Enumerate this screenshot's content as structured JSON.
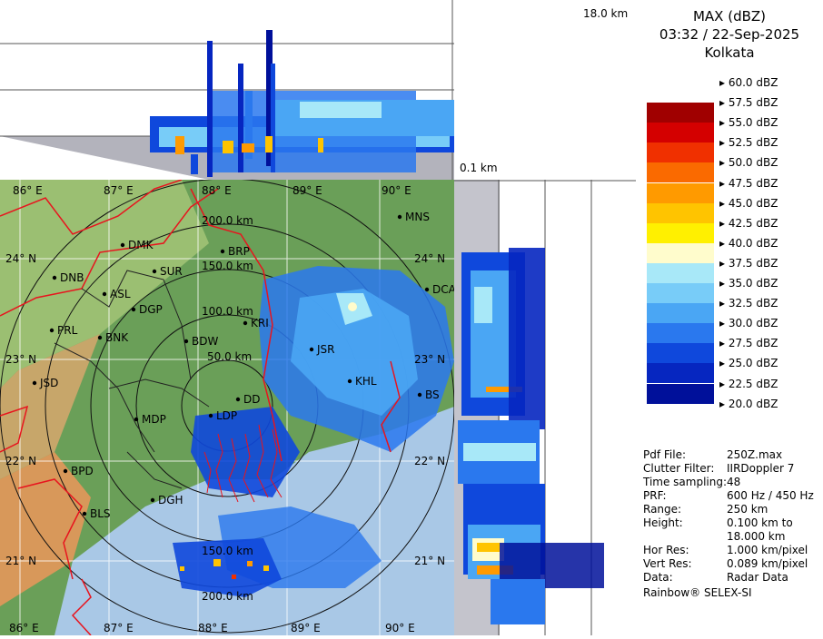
{
  "legend": {
    "title_lines": [
      "MAX (dBZ)",
      "03:32 / 22-Sep-2025",
      "Kolkata"
    ],
    "levels": [
      {
        "label": "60.0 dBZ",
        "color": ""
      },
      {
        "label": "57.5 dBZ",
        "color": "#ffffff"
      },
      {
        "label": "55.0 dBZ",
        "color": "#a00000"
      },
      {
        "label": "52.5 dBZ",
        "color": "#d40000"
      },
      {
        "label": "50.0 dBZ",
        "color": "#f03000"
      },
      {
        "label": "47.5 dBZ",
        "color": "#fa6a00"
      },
      {
        "label": "45.0 dBZ",
        "color": "#ff9a00"
      },
      {
        "label": "42.5 dBZ",
        "color": "#ffc400"
      },
      {
        "label": "40.0 dBZ",
        "color": "#fff000"
      },
      {
        "label": "37.5 dBZ",
        "color": "#fffccc"
      },
      {
        "label": "35.0 dBZ",
        "color": "#a8e8f8"
      },
      {
        "label": "32.5 dBZ",
        "color": "#78ccf8"
      },
      {
        "label": "30.0 dBZ",
        "color": "#4aa6f4"
      },
      {
        "label": "27.5 dBZ",
        "color": "#2a78ee"
      },
      {
        "label": "25.0 dBZ",
        "color": "#0f48dc"
      },
      {
        "label": "22.5 dBZ",
        "color": "#0626c0"
      },
      {
        "label": "20.0 dBZ",
        "color": "#00109a"
      }
    ]
  },
  "info": [
    {
      "key": "Pdf File:",
      "value": "250Z.max"
    },
    {
      "key": "Clutter Filter:",
      "value": "IIRDoppler 7"
    },
    {
      "key": "Time sampling:",
      "value": "48"
    },
    {
      "key": "PRF:",
      "value": "600 Hz / 450 Hz"
    },
    {
      "key": "Range:",
      "value": "250 km"
    },
    {
      "key": "Height:",
      "value": "0.100 km to"
    },
    {
      "key": "",
      "value": "18.000 km"
    },
    {
      "key": "Hor Res:",
      "value": "1.000 km/pixel"
    },
    {
      "key": "Vert Res:",
      "value": "0.089 km/pixel"
    },
    {
      "key": "Data:",
      "value": "Radar Data"
    }
  ],
  "footer": "Rainbow® SELEX-SI",
  "height_labels": {
    "top": "18.0 km",
    "bottom": "0.1 km"
  },
  "map": {
    "lon_labels": [
      "86° E",
      "87° E",
      "88° E",
      "89° E",
      "90° E"
    ],
    "lat_labels": [
      "24° N",
      "23° N",
      "22° N",
      "21° N"
    ],
    "range_labels": [
      "200.0 km",
      "150.0 km",
      "100.0 km",
      "50.0 km",
      "150.0 km",
      "200.0 km"
    ],
    "places": [
      "DMK",
      "BRP",
      "MNS",
      "DNB",
      "SUR",
      "ASL",
      "DGP",
      "KRI",
      "DCA",
      "PRL",
      "BNK",
      "BDW",
      "JSR",
      "KHL",
      "JSD",
      "MDP",
      "DD",
      "LDP",
      "BS",
      "BPD",
      "DGH",
      "BLS"
    ]
  },
  "colors": {
    "land_green": "#6a9f58",
    "sea": "#a9c8e6",
    "border": "#e8141e",
    "panel_gray": "#b3b3bc"
  }
}
